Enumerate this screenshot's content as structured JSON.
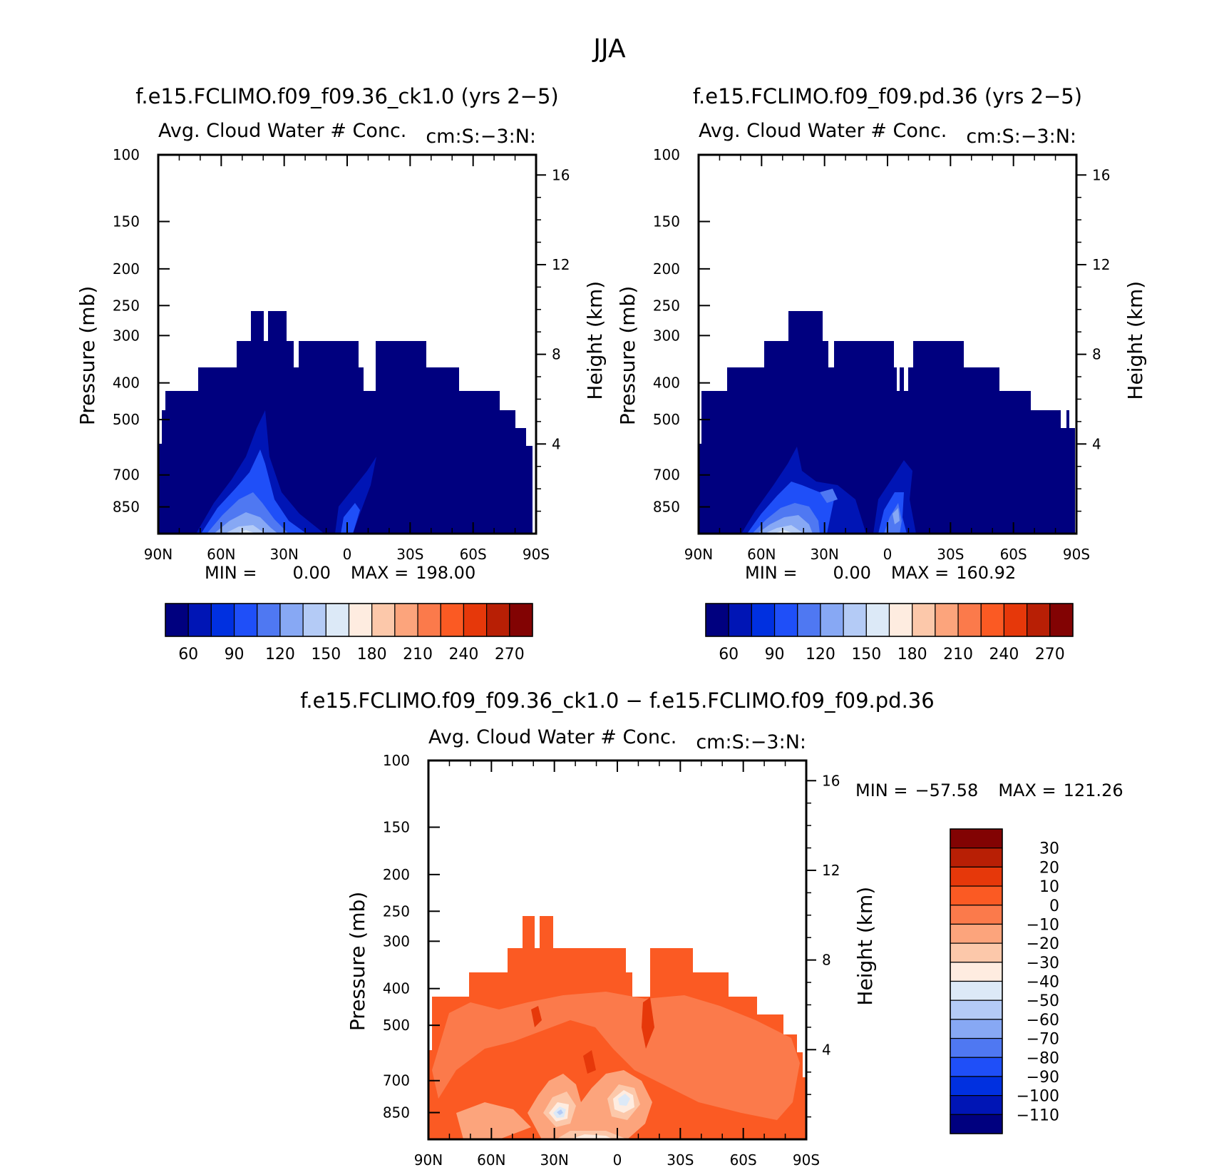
{
  "page_title": "JJA",
  "chart_data": [
    {
      "type": "contour",
      "title": "f.e15.FCLIMO.f09_f09.36_ck1.0 (yrs 2−5)",
      "subtitle": "Avg. Cloud Water # Conc.",
      "units": "cm:S:−3:N:",
      "ylabel": "Pressure (mb)",
      "y2label": "Height (km)",
      "x_ticks": [
        "90N",
        "60N",
        "30N",
        "0",
        "30S",
        "60S",
        "90S"
      ],
      "y_ticks": [
        "100",
        "150",
        "200",
        "250",
        "300",
        "400",
        "500",
        "700",
        "850"
      ],
      "y2_ticks": [
        "16",
        "12",
        "8",
        "4"
      ],
      "min_label": "MIN =",
      "min_value": "0.00",
      "max_label": "MAX =",
      "max_value": "198.00",
      "colorbar_labels": [
        "60",
        "90",
        "120",
        "150",
        "180",
        "210",
        "240",
        "270"
      ],
      "colors": [
        "#00007f",
        "#0015b5",
        "#0030e0",
        "#1f4ff8",
        "#4f78f2",
        "#87a8f4",
        "#b4cbf6",
        "#dce9f7",
        "#feece0",
        "#fcc8aa",
        "#fca47c",
        "#fb7a4b",
        "#fb5a23",
        "#e6380a",
        "#b81f05",
        "#820303"
      ]
    },
    {
      "type": "contour",
      "title": "f.e15.FCLIMO.f09_f09.pd.36 (yrs 2−5)",
      "subtitle": "Avg. Cloud Water # Conc.",
      "units": "cm:S:−3:N:",
      "ylabel": "Pressure (mb)",
      "y2label": "Height (km)",
      "x_ticks": [
        "90N",
        "60N",
        "30N",
        "0",
        "30S",
        "60S",
        "90S"
      ],
      "y_ticks": [
        "100",
        "150",
        "200",
        "250",
        "300",
        "400",
        "500",
        "700",
        "850"
      ],
      "y2_ticks": [
        "16",
        "12",
        "8",
        "4"
      ],
      "min_label": "MIN =",
      "min_value": "0.00",
      "max_label": "MAX =",
      "max_value": "160.92",
      "colorbar_labels": [
        "60",
        "90",
        "120",
        "150",
        "180",
        "210",
        "240",
        "270"
      ],
      "colors": [
        "#00007f",
        "#0015b5",
        "#0030e0",
        "#1f4ff8",
        "#4f78f2",
        "#87a8f4",
        "#b4cbf6",
        "#dce9f7",
        "#feece0",
        "#fcc8aa",
        "#fca47c",
        "#fb7a4b",
        "#fb5a23",
        "#e6380a",
        "#b81f05",
        "#820303"
      ]
    },
    {
      "type": "contour",
      "title": "f.e15.FCLIMO.f09_f09.36_ck1.0 − f.e15.FCLIMO.f09_f09.pd.36",
      "subtitle": "Avg. Cloud Water # Conc.",
      "units": "cm:S:−3:N:",
      "ylabel": "Pressure (mb)",
      "y2label": "Height (km)",
      "x_ticks": [
        "90N",
        "60N",
        "30N",
        "0",
        "30S",
        "60S",
        "90S"
      ],
      "y_ticks": [
        "100",
        "150",
        "200",
        "250",
        "300",
        "400",
        "500",
        "700",
        "850"
      ],
      "y2_ticks": [
        "16",
        "12",
        "8",
        "4"
      ],
      "min_label": "MIN =",
      "min_value": "−57.58",
      "max_label": "MAX =",
      "max_value": "121.26",
      "colorbar_labels": [
        "30",
        "20",
        "10",
        "0",
        "−10",
        "−20",
        "−30",
        "−40",
        "−50",
        "−60",
        "−70",
        "−80",
        "−90",
        "−100",
        "−110"
      ],
      "colors": [
        "#820303",
        "#b81f05",
        "#e6380a",
        "#fb5a23",
        "#fb7a4b",
        "#fca47c",
        "#fcc8aa",
        "#feece0",
        "#dce9f7",
        "#b4cbf6",
        "#87a8f4",
        "#4f78f2",
        "#1f4ff8",
        "#0030e0",
        "#0015b5",
        "#00007f"
      ]
    }
  ]
}
